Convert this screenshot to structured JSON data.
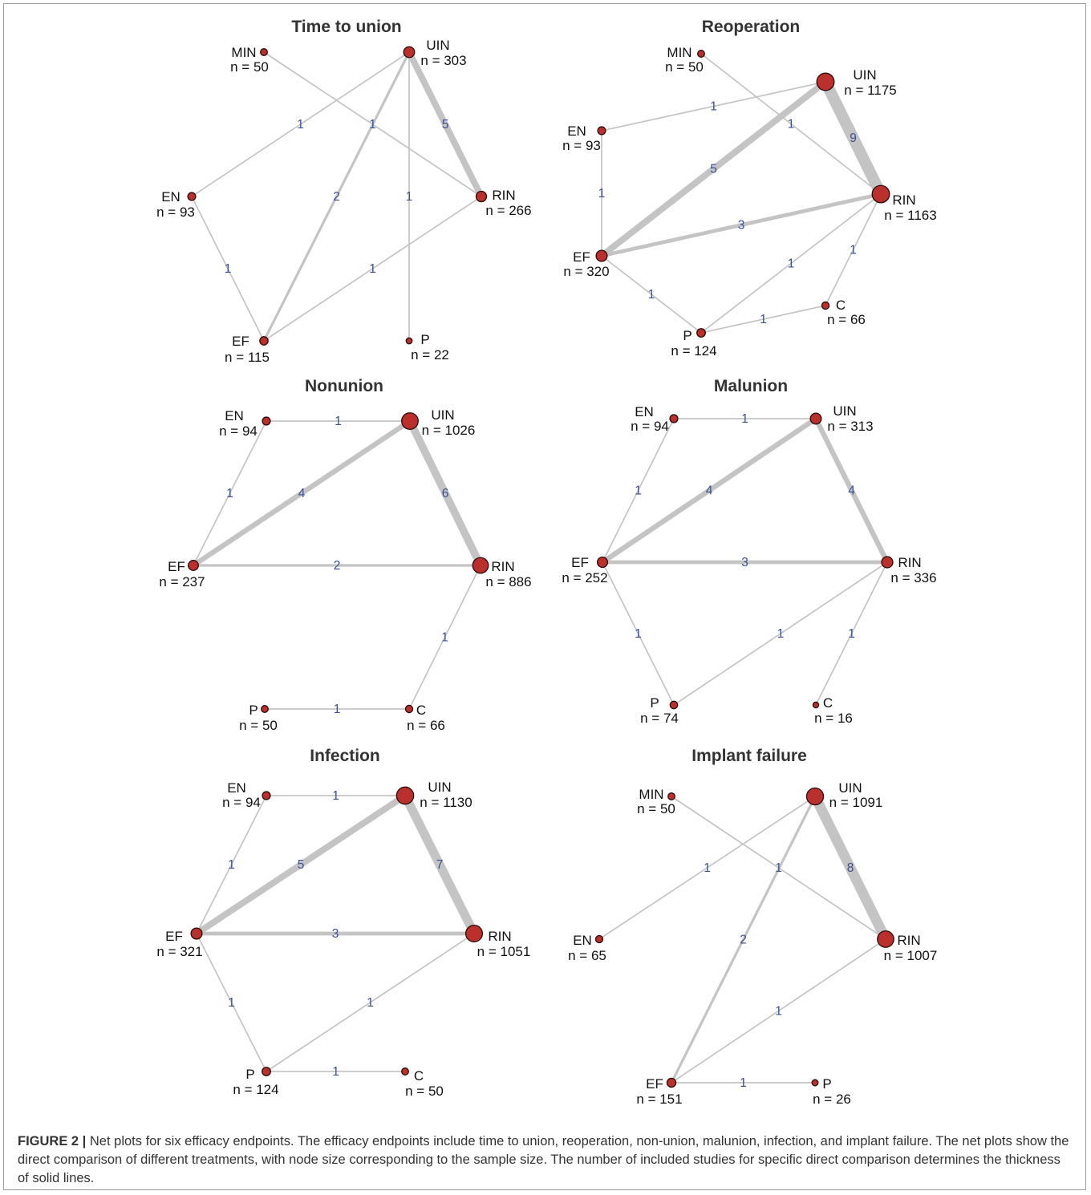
{
  "colors": {
    "edge": "#c4c4c4",
    "node_fill": "#b9302c",
    "node_stroke": "#2a0a0a",
    "edge_label": "#3a4f93"
  },
  "panels": [
    {
      "title": "Time to union",
      "nodes": [
        {
          "id": "MIN",
          "n": "n = 50",
          "size": 50
        },
        {
          "id": "UIN",
          "n": "n = 303",
          "size": 303
        },
        {
          "id": "EN",
          "n": "n = 93",
          "size": 93
        },
        {
          "id": "RIN",
          "n": "n = 266",
          "size": 266
        },
        {
          "id": "EF",
          "n": "n = 115",
          "size": 115
        },
        {
          "id": "P",
          "n": "n = 22",
          "size": 22
        }
      ],
      "edges": [
        {
          "a": "UIN",
          "b": "RIN",
          "studies": 5
        },
        {
          "a": "UIN",
          "b": "EF",
          "studies": 2
        },
        {
          "a": "UIN",
          "b": "EN",
          "studies": 1
        },
        {
          "a": "UIN",
          "b": "P",
          "studies": 1
        },
        {
          "a": "MIN",
          "b": "RIN",
          "studies": 1
        },
        {
          "a": "EN",
          "b": "EF",
          "studies": 1
        },
        {
          "a": "EF",
          "b": "RIN",
          "studies": 1
        }
      ]
    },
    {
      "title": "Reoperation",
      "nodes": [
        {
          "id": "MIN",
          "n": "n = 50",
          "size": 50
        },
        {
          "id": "UIN",
          "n": "n = 1175",
          "size": 1175
        },
        {
          "id": "EN",
          "n": "n = 93",
          "size": 93
        },
        {
          "id": "RIN",
          "n": "n = 1163",
          "size": 1163
        },
        {
          "id": "EF",
          "n": "n = 320",
          "size": 320
        },
        {
          "id": "C",
          "n": "n = 66",
          "size": 66
        },
        {
          "id": "P",
          "n": "n = 124",
          "size": 124
        }
      ],
      "edges": [
        {
          "a": "UIN",
          "b": "RIN",
          "studies": 9
        },
        {
          "a": "UIN",
          "b": "EF",
          "studies": 5
        },
        {
          "a": "EF",
          "b": "RIN",
          "studies": 3
        },
        {
          "a": "EN",
          "b": "UIN",
          "studies": 1
        },
        {
          "a": "MIN",
          "b": "RIN",
          "studies": 1
        },
        {
          "a": "EN",
          "b": "EF",
          "studies": 1
        },
        {
          "a": "EF",
          "b": "P",
          "studies": 1
        },
        {
          "a": "P",
          "b": "RIN",
          "studies": 1
        },
        {
          "a": "P",
          "b": "C",
          "studies": 1
        },
        {
          "a": "C",
          "b": "RIN",
          "studies": 1
        }
      ]
    },
    {
      "title": "Nonunion",
      "nodes": [
        {
          "id": "EN",
          "n": "n = 94",
          "size": 94
        },
        {
          "id": "UIN",
          "n": "n = 1026",
          "size": 1026
        },
        {
          "id": "EF",
          "n": "n = 237",
          "size": 237
        },
        {
          "id": "RIN",
          "n": "n = 886",
          "size": 886
        },
        {
          "id": "P",
          "n": "n = 50",
          "size": 50
        },
        {
          "id": "C",
          "n": "n = 66",
          "size": 66
        }
      ],
      "edges": [
        {
          "a": "UIN",
          "b": "RIN",
          "studies": 6
        },
        {
          "a": "UIN",
          "b": "EF",
          "studies": 4
        },
        {
          "a": "EF",
          "b": "RIN",
          "studies": 2
        },
        {
          "a": "EN",
          "b": "UIN",
          "studies": 1
        },
        {
          "a": "EN",
          "b": "EF",
          "studies": 1
        },
        {
          "a": "RIN",
          "b": "C",
          "studies": 1
        },
        {
          "a": "P",
          "b": "C",
          "studies": 1
        }
      ]
    },
    {
      "title": "Malunion",
      "nodes": [
        {
          "id": "EN",
          "n": "n = 94",
          "size": 94
        },
        {
          "id": "UIN",
          "n": "n = 313",
          "size": 313
        },
        {
          "id": "EF",
          "n": "n = 252",
          "size": 252
        },
        {
          "id": "RIN",
          "n": "n = 336",
          "size": 336
        },
        {
          "id": "P",
          "n": "n = 74",
          "size": 74
        },
        {
          "id": "C",
          "n": "n = 16",
          "size": 16
        }
      ],
      "edges": [
        {
          "a": "UIN",
          "b": "EF",
          "studies": 4
        },
        {
          "a": "UIN",
          "b": "RIN",
          "studies": 4
        },
        {
          "a": "EF",
          "b": "RIN",
          "studies": 3
        },
        {
          "a": "EN",
          "b": "UIN",
          "studies": 1
        },
        {
          "a": "EN",
          "b": "EF",
          "studies": 1
        },
        {
          "a": "EF",
          "b": "P",
          "studies": 1
        },
        {
          "a": "P",
          "b": "RIN",
          "studies": 1
        },
        {
          "a": "C",
          "b": "RIN",
          "studies": 1
        }
      ]
    },
    {
      "title": "Infection",
      "nodes": [
        {
          "id": "EN",
          "n": "n = 94",
          "size": 94
        },
        {
          "id": "UIN",
          "n": "n = 1130",
          "size": 1130
        },
        {
          "id": "EF",
          "n": "n = 321",
          "size": 321
        },
        {
          "id": "RIN",
          "n": "n = 1051",
          "size": 1051
        },
        {
          "id": "P",
          "n": "n = 124",
          "size": 124
        },
        {
          "id": "C",
          "n": "n = 50",
          "size": 50
        }
      ],
      "edges": [
        {
          "a": "UIN",
          "b": "RIN",
          "studies": 7
        },
        {
          "a": "UIN",
          "b": "EF",
          "studies": 5
        },
        {
          "a": "EF",
          "b": "RIN",
          "studies": 3
        },
        {
          "a": "EN",
          "b": "UIN",
          "studies": 1
        },
        {
          "a": "EN",
          "b": "EF",
          "studies": 1
        },
        {
          "a": "EF",
          "b": "P",
          "studies": 1
        },
        {
          "a": "P",
          "b": "RIN",
          "studies": 1
        },
        {
          "a": "P",
          "b": "C",
          "studies": 1
        }
      ]
    },
    {
      "title": "Implant failure",
      "nodes": [
        {
          "id": "MIN",
          "n": "n = 50",
          "size": 50
        },
        {
          "id": "UIN",
          "n": "n = 1091",
          "size": 1091
        },
        {
          "id": "EN",
          "n": "n = 65",
          "size": 65
        },
        {
          "id": "RIN",
          "n": "n = 1007",
          "size": 1007
        },
        {
          "id": "EF",
          "n": "n = 151",
          "size": 151
        },
        {
          "id": "P",
          "n": "n = 26",
          "size": 26
        }
      ],
      "edges": [
        {
          "a": "UIN",
          "b": "RIN",
          "studies": 8
        },
        {
          "a": "UIN",
          "b": "EF",
          "studies": 2
        },
        {
          "a": "UIN",
          "b": "EN",
          "studies": 1
        },
        {
          "a": "MIN",
          "b": "RIN",
          "studies": 1
        },
        {
          "a": "EF",
          "b": "RIN",
          "studies": 1
        },
        {
          "a": "EF",
          "b": "P",
          "studies": 1
        }
      ]
    }
  ],
  "caption": {
    "label": "FIGURE 2 |",
    "text": " Net plots for six efficacy endpoints. The efficacy endpoints include time to union, reoperation, non-union, malunion, infection, and implant failure. The net plots show the direct comparison of different treatments, with node size corresponding to the sample size. The number of included studies for specific direct comparison determines the thickness of solid lines."
  }
}
